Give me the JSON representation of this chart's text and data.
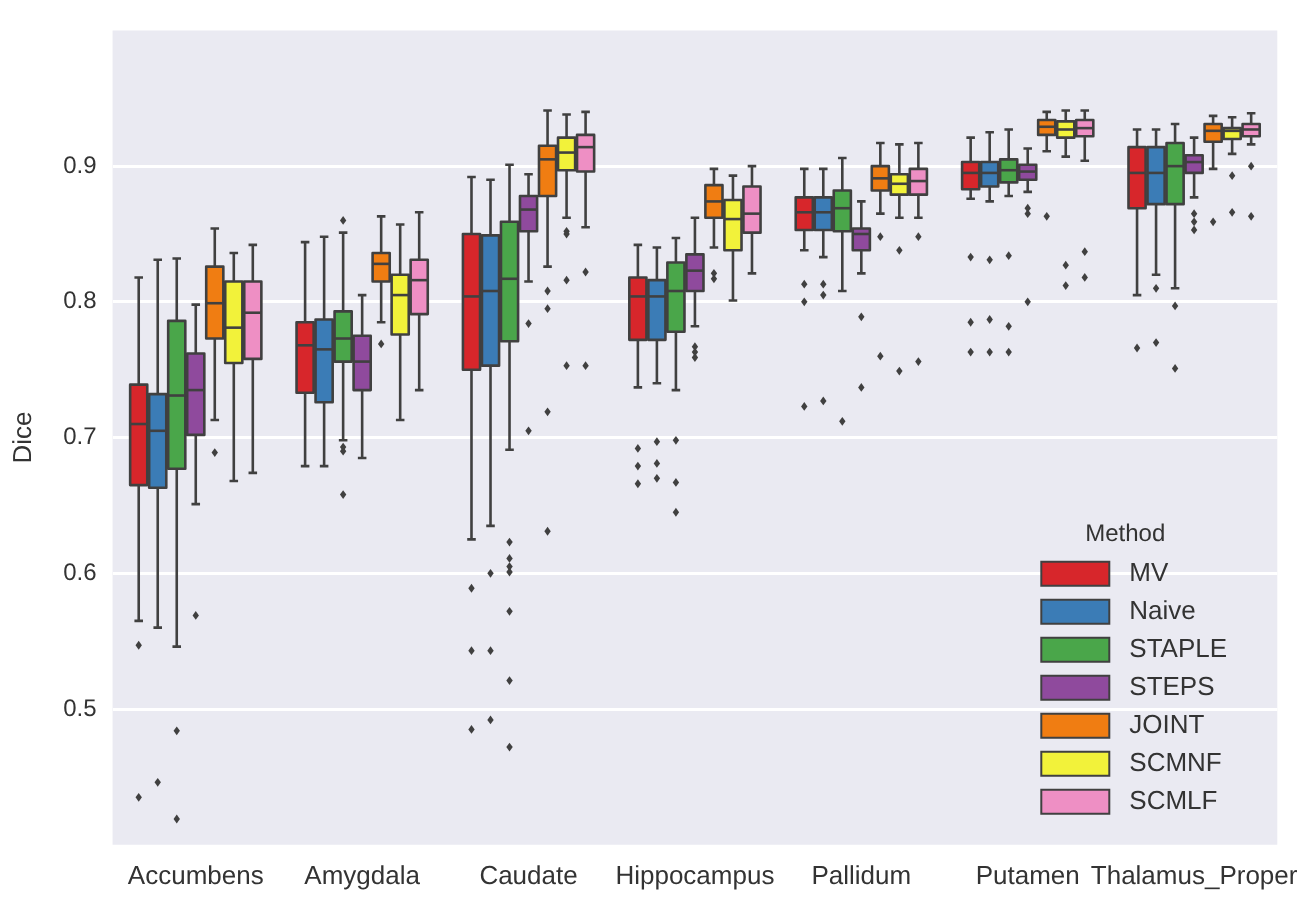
{
  "chart_data": {
    "type": "box",
    "ylabel": "Dice",
    "legend_title": "Method",
    "legend": "bottom right",
    "grid": "y",
    "categories": [
      "Accumbens",
      "Amygdala",
      "Caudate",
      "Hippocampus",
      "Pallidum",
      "Putamen",
      "Thalamus_Proper"
    ],
    "ylim": [
      0.4,
      1.0
    ],
    "yticks": [
      0.5,
      0.6,
      0.7,
      0.8,
      0.9
    ],
    "series": [
      {
        "name": "MV",
        "color": "#d7262b",
        "boxes": [
          {
            "low": 0.565,
            "q1": 0.665,
            "median": 0.71,
            "q3": 0.739,
            "high": 0.818,
            "outliers": [
              0.547,
              0.435
            ]
          },
          {
            "low": 0.679,
            "q1": 0.733,
            "median": 0.768,
            "q3": 0.785,
            "high": 0.844
          },
          {
            "low": 0.625,
            "q1": 0.75,
            "median": 0.804,
            "q3": 0.85,
            "high": 0.892,
            "outliers": [
              0.589,
              0.543,
              0.485
            ]
          },
          {
            "low": 0.737,
            "q1": 0.772,
            "median": 0.804,
            "q3": 0.818,
            "high": 0.842,
            "outliers": [
              0.692,
              0.679,
              0.666
            ]
          },
          {
            "low": 0.838,
            "q1": 0.853,
            "median": 0.866,
            "q3": 0.877,
            "high": 0.898,
            "outliers": [
              0.813,
              0.8,
              0.723
            ]
          },
          {
            "low": 0.876,
            "q1": 0.883,
            "median": 0.895,
            "q3": 0.903,
            "high": 0.921,
            "outliers": [
              0.833,
              0.785,
              0.763
            ]
          },
          {
            "low": 0.805,
            "q1": 0.869,
            "median": 0.895,
            "q3": 0.914,
            "high": 0.927,
            "outliers": [
              0.766
            ]
          }
        ]
      },
      {
        "name": "Naive",
        "color": "#3b7cb6",
        "boxes": [
          {
            "low": 0.56,
            "q1": 0.663,
            "median": 0.705,
            "q3": 0.732,
            "high": 0.831,
            "outliers": [
              0.446
            ]
          },
          {
            "low": 0.679,
            "q1": 0.726,
            "median": 0.765,
            "q3": 0.787,
            "high": 0.848
          },
          {
            "low": 0.635,
            "q1": 0.753,
            "median": 0.808,
            "q3": 0.849,
            "high": 0.89,
            "outliers": [
              0.6,
              0.543,
              0.492
            ]
          },
          {
            "low": 0.74,
            "q1": 0.772,
            "median": 0.804,
            "q3": 0.816,
            "high": 0.84,
            "outliers": [
              0.697,
              0.681,
              0.67
            ]
          },
          {
            "low": 0.833,
            "q1": 0.853,
            "median": 0.866,
            "q3": 0.877,
            "high": 0.898,
            "outliers": [
              0.813,
              0.805,
              0.727
            ]
          },
          {
            "low": 0.874,
            "q1": 0.885,
            "median": 0.895,
            "q3": 0.903,
            "high": 0.925,
            "outliers": [
              0.831,
              0.787,
              0.763
            ]
          },
          {
            "low": 0.82,
            "q1": 0.872,
            "median": 0.895,
            "q3": 0.914,
            "high": 0.927,
            "outliers": [
              0.81,
              0.77
            ]
          }
        ]
      },
      {
        "name": "STAPLE",
        "color": "#4aa64a",
        "boxes": [
          {
            "low": 0.546,
            "q1": 0.677,
            "median": 0.731,
            "q3": 0.786,
            "high": 0.832,
            "outliers": [
              0.484,
              0.419
            ]
          },
          {
            "low": 0.698,
            "q1": 0.756,
            "median": 0.773,
            "q3": 0.793,
            "high": 0.851,
            "outliers": [
              0.86,
              0.693,
              0.69,
              0.658
            ]
          },
          {
            "low": 0.691,
            "q1": 0.771,
            "median": 0.817,
            "q3": 0.859,
            "high": 0.901,
            "outliers": [
              0.623,
              0.611,
              0.605,
              0.601,
              0.572,
              0.521,
              0.472
            ]
          },
          {
            "low": 0.735,
            "q1": 0.778,
            "median": 0.808,
            "q3": 0.829,
            "high": 0.847,
            "outliers": [
              0.698,
              0.667,
              0.645
            ]
          },
          {
            "low": 0.808,
            "q1": 0.852,
            "median": 0.869,
            "q3": 0.882,
            "high": 0.906,
            "outliers": [
              0.712
            ]
          },
          {
            "low": 0.878,
            "q1": 0.888,
            "median": 0.897,
            "q3": 0.905,
            "high": 0.927,
            "outliers": [
              0.834,
              0.782,
              0.763
            ]
          },
          {
            "low": 0.81,
            "q1": 0.872,
            "median": 0.9,
            "q3": 0.917,
            "high": 0.931,
            "outliers": [
              0.797,
              0.751
            ]
          }
        ]
      },
      {
        "name": "STEPS",
        "color": "#8f4a9d",
        "boxes": [
          {
            "low": 0.651,
            "q1": 0.702,
            "median": 0.735,
            "q3": 0.762,
            "high": 0.798,
            "outliers": [
              0.569
            ]
          },
          {
            "low": 0.685,
            "q1": 0.735,
            "median": 0.756,
            "q3": 0.775,
            "high": 0.805
          },
          {
            "low": 0.815,
            "q1": 0.852,
            "median": 0.868,
            "q3": 0.878,
            "high": 0.894,
            "outliers": [
              0.784,
              0.705
            ]
          },
          {
            "low": 0.782,
            "q1": 0.808,
            "median": 0.823,
            "q3": 0.835,
            "high": 0.862,
            "outliers": [
              0.767,
              0.763,
              0.759
            ]
          },
          {
            "low": 0.821,
            "q1": 0.838,
            "median": 0.85,
            "q3": 0.854,
            "high": 0.874,
            "outliers": [
              0.789,
              0.737
            ]
          },
          {
            "low": 0.881,
            "q1": 0.89,
            "median": 0.896,
            "q3": 0.901,
            "high": 0.913,
            "outliers": [
              0.869,
              0.865,
              0.8
            ]
          },
          {
            "low": 0.877,
            "q1": 0.895,
            "median": 0.903,
            "q3": 0.908,
            "high": 0.921,
            "outliers": [
              0.865,
              0.859,
              0.853
            ]
          }
        ]
      },
      {
        "name": "JOINT",
        "color": "#f07d12",
        "boxes": [
          {
            "low": 0.713,
            "q1": 0.773,
            "median": 0.799,
            "q3": 0.826,
            "high": 0.854,
            "outliers": [
              0.689
            ]
          },
          {
            "low": 0.785,
            "q1": 0.815,
            "median": 0.828,
            "q3": 0.836,
            "high": 0.863,
            "outliers": [
              0.769
            ]
          },
          {
            "low": 0.826,
            "q1": 0.878,
            "median": 0.905,
            "q3": 0.915,
            "high": 0.941,
            "outliers": [
              0.808,
              0.795,
              0.719,
              0.631
            ]
          },
          {
            "low": 0.84,
            "q1": 0.862,
            "median": 0.874,
            "q3": 0.886,
            "high": 0.898,
            "outliers": [
              0.821,
              0.817
            ]
          },
          {
            "low": 0.865,
            "q1": 0.882,
            "median": 0.891,
            "q3": 0.9,
            "high": 0.917,
            "outliers": [
              0.848,
              0.76
            ]
          },
          {
            "low": 0.911,
            "q1": 0.923,
            "median": 0.929,
            "q3": 0.934,
            "high": 0.94,
            "outliers": [
              0.863
            ]
          },
          {
            "low": 0.898,
            "q1": 0.918,
            "median": 0.926,
            "q3": 0.931,
            "high": 0.937,
            "outliers": [
              0.859
            ]
          }
        ]
      },
      {
        "name": "SCMNF",
        "color": "#f2f23a",
        "boxes": [
          {
            "low": 0.668,
            "q1": 0.755,
            "median": 0.781,
            "q3": 0.815,
            "high": 0.836
          },
          {
            "low": 0.713,
            "q1": 0.776,
            "median": 0.805,
            "q3": 0.82,
            "high": 0.857
          },
          {
            "low": 0.862,
            "q1": 0.897,
            "median": 0.91,
            "q3": 0.921,
            "high": 0.938,
            "outliers": [
              0.852,
              0.85,
              0.816,
              0.753
            ]
          },
          {
            "low": 0.801,
            "q1": 0.838,
            "median": 0.861,
            "q3": 0.875,
            "high": 0.893
          },
          {
            "low": 0.862,
            "q1": 0.879,
            "median": 0.887,
            "q3": 0.894,
            "high": 0.916,
            "outliers": [
              0.838,
              0.749
            ]
          },
          {
            "low": 0.907,
            "q1": 0.921,
            "median": 0.927,
            "q3": 0.933,
            "high": 0.941,
            "outliers": [
              0.827,
              0.812
            ]
          },
          {
            "low": 0.909,
            "q1": 0.92,
            "median": 0.926,
            "q3": 0.928,
            "high": 0.936,
            "outliers": [
              0.893,
              0.866
            ]
          }
        ]
      },
      {
        "name": "SCMLF",
        "color": "#ee8fc4",
        "boxes": [
          {
            "low": 0.674,
            "q1": 0.758,
            "median": 0.792,
            "q3": 0.815,
            "high": 0.842
          },
          {
            "low": 0.735,
            "q1": 0.791,
            "median": 0.816,
            "q3": 0.831,
            "high": 0.866
          },
          {
            "low": 0.855,
            "q1": 0.896,
            "median": 0.914,
            "q3": 0.923,
            "high": 0.94,
            "outliers": [
              0.822,
              0.753
            ]
          },
          {
            "low": 0.821,
            "q1": 0.851,
            "median": 0.865,
            "q3": 0.885,
            "high": 0.9
          },
          {
            "low": 0.862,
            "q1": 0.879,
            "median": 0.889,
            "q3": 0.898,
            "high": 0.917,
            "outliers": [
              0.848,
              0.756
            ]
          },
          {
            "low": 0.904,
            "q1": 0.922,
            "median": 0.928,
            "q3": 0.934,
            "high": 0.941,
            "outliers": [
              0.837,
              0.818
            ]
          },
          {
            "low": 0.916,
            "q1": 0.922,
            "median": 0.927,
            "q3": 0.931,
            "high": 0.939,
            "outliers": [
              0.9,
              0.863
            ]
          }
        ]
      }
    ]
  }
}
